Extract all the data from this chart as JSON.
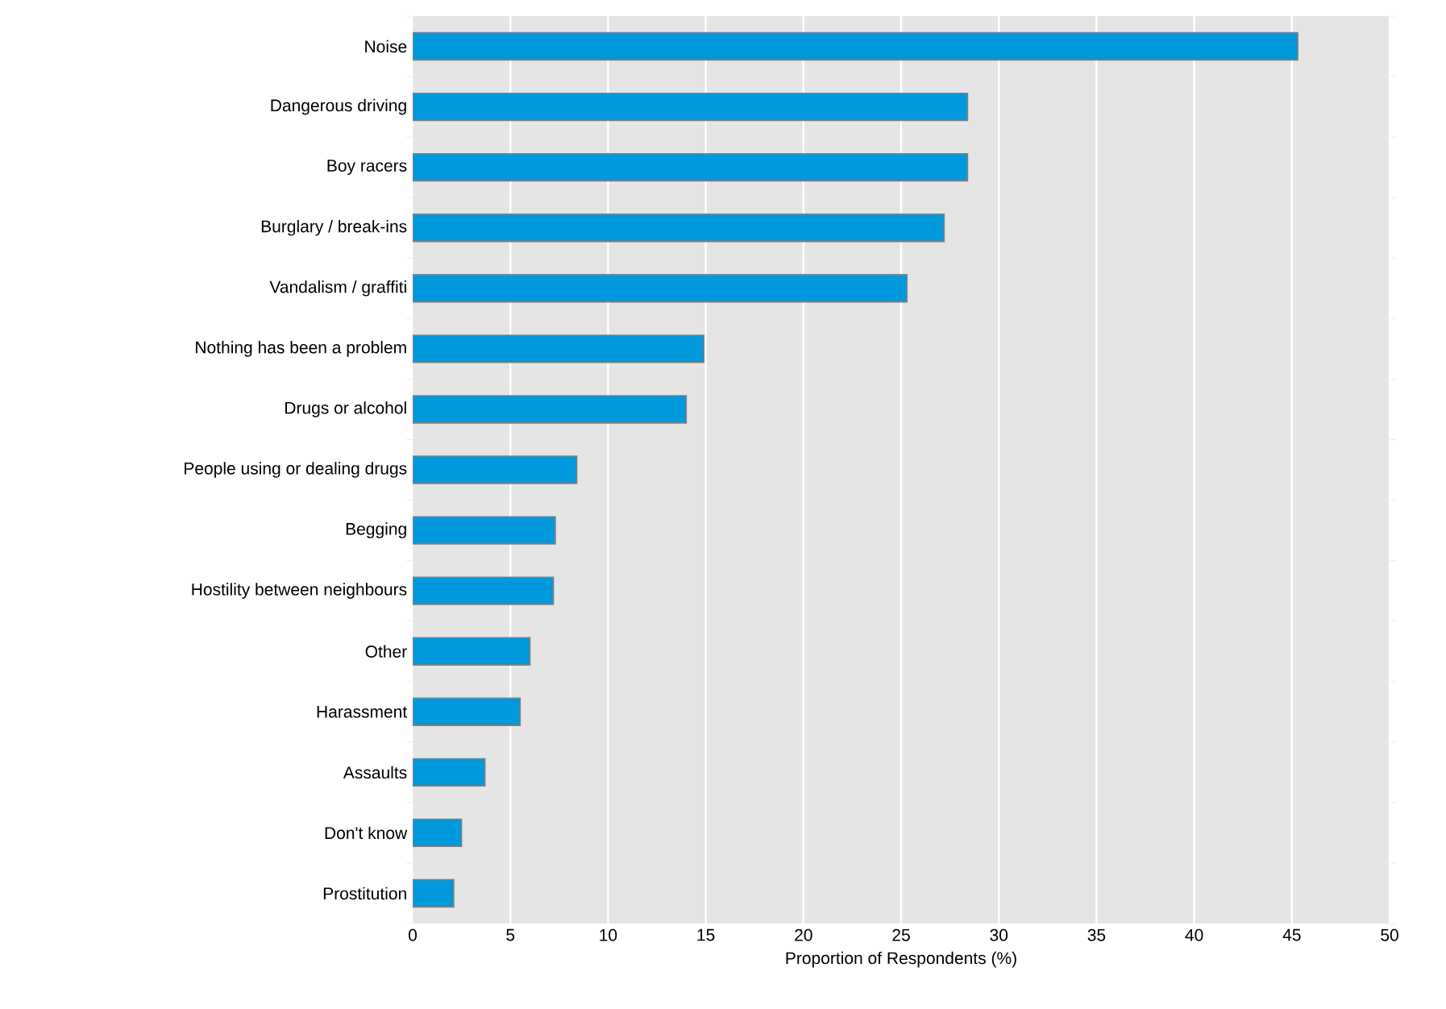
{
  "chart_data": {
    "type": "bar",
    "orientation": "horizontal",
    "xlabel": "Proportion of Respondents (%)",
    "categories": [
      "Noise",
      "Dangerous driving",
      "Boy racers",
      "Burglary / break-ins",
      "Vandalism / graffiti",
      "Nothing has been a problem",
      "Drugs or alcohol",
      "People using or dealing drugs",
      "Begging",
      "Hostility between neighbours",
      "Other",
      "Harassment",
      "Assaults",
      "Don't know",
      "Prostitution"
    ],
    "values": [
      45.3,
      28.4,
      28.4,
      27.2,
      25.3,
      14.9,
      14.0,
      8.4,
      7.3,
      7.2,
      6.0,
      5.5,
      3.7,
      2.5,
      2.1
    ],
    "color": "#0099dd",
    "xlim": [
      0,
      50
    ],
    "xticks": [
      0,
      5,
      10,
      15,
      20,
      25,
      30,
      35,
      40,
      45,
      50
    ],
    "grid": "x"
  }
}
